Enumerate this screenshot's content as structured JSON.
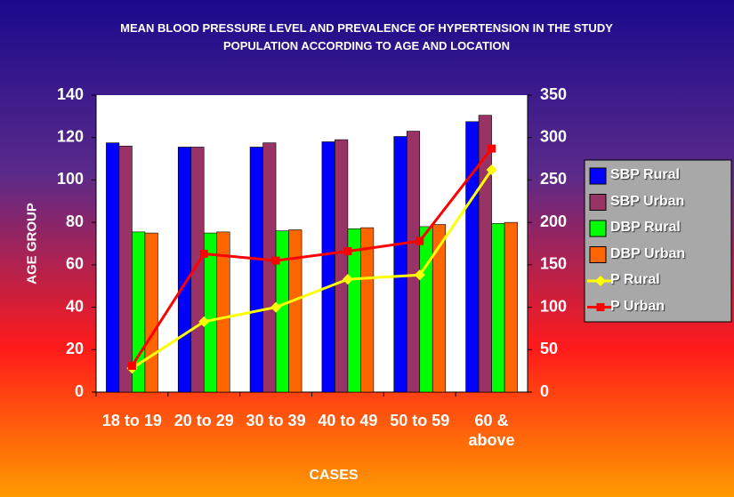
{
  "chart_data": {
    "type": "bar_line",
    "title": "MEAN BLOOD PRESSURE LEVEL AND PREVALENCE OF HYPERTENSION IN THE STUDY POPULATION ACCORDING TO AGE AND LOCATION",
    "x_label": "CASES",
    "y_label": "AGE GROUP",
    "categories": [
      "18 to 19",
      "20 to 29",
      "30 to 39",
      "40 to 49",
      "50 to 59",
      "60 & above"
    ],
    "series": [
      {
        "name": "SBP Rural",
        "color": "#0000ff",
        "kind": "bar",
        "values": [
          117.5,
          115.5,
          115.5,
          118,
          120.5,
          127.5
        ]
      },
      {
        "name": "SBP Urban",
        "color": "#993366",
        "kind": "bar",
        "values": [
          116,
          115.5,
          117.5,
          119,
          123,
          130.5
        ]
      },
      {
        "name": "DBP Rural",
        "color": "#00ff00",
        "kind": "bar",
        "values": [
          75.5,
          75,
          76,
          77,
          78,
          79.5
        ]
      },
      {
        "name": "DBP Urban",
        "color": "#ff6600",
        "kind": "bar",
        "values": [
          75,
          75.5,
          76.5,
          77.5,
          79,
          80
        ]
      },
      {
        "name": "P Rural",
        "color": "#ffff00",
        "kind": "line",
        "marker": "diamond",
        "axis": "y2",
        "values": [
          28,
          83,
          100,
          133,
          138,
          262
        ]
      },
      {
        "name": "P Urban",
        "color": "#ff0000",
        "kind": "line",
        "marker": "square",
        "axis": "y2",
        "values": [
          31,
          163,
          155,
          166,
          178,
          287
        ]
      }
    ],
    "ylim": [
      0,
      140
    ],
    "yticks": [
      0,
      20,
      40,
      60,
      80,
      100,
      120,
      140
    ],
    "y2lim": [
      0,
      350
    ],
    "y2ticks": [
      0,
      50,
      100,
      150,
      200,
      250,
      300,
      350
    ],
    "grid": false,
    "legend": "right"
  }
}
